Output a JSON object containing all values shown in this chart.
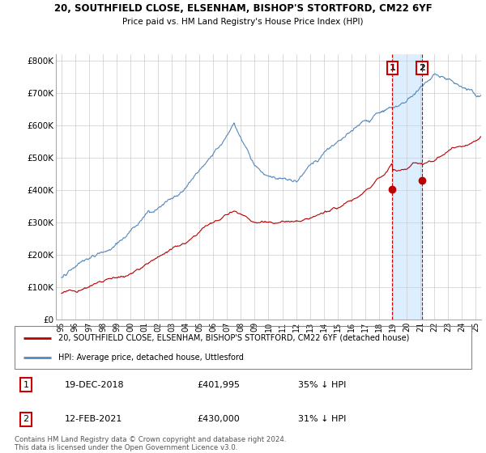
{
  "title_line1": "20, SOUTHFIELD CLOSE, ELSENHAM, BISHOP'S STORTFORD, CM22 6YF",
  "title_line2": "Price paid vs. HM Land Registry's House Price Index (HPI)",
  "ylabel_ticks": [
    "£0",
    "£100K",
    "£200K",
    "£300K",
    "£400K",
    "£500K",
    "£600K",
    "£700K",
    "£800K"
  ],
  "ytick_values": [
    0,
    100000,
    200000,
    300000,
    400000,
    500000,
    600000,
    700000,
    800000
  ],
  "ylim": [
    0,
    820000
  ],
  "legend_line1": "20, SOUTHFIELD CLOSE, ELSENHAM, BISHOP'S STORTFORD, CM22 6YF (detached house)",
  "legend_line2": "HPI: Average price, detached house, Uttlesford",
  "annotation1_date": "19-DEC-2018",
  "annotation1_price": "£401,995",
  "annotation1_hpi": "35% ↓ HPI",
  "annotation2_date": "12-FEB-2021",
  "annotation2_price": "£430,000",
  "annotation2_hpi": "31% ↓ HPI",
  "footer": "Contains HM Land Registry data © Crown copyright and database right 2024.\nThis data is licensed under the Open Government Licence v3.0.",
  "hpi_color": "#5588bb",
  "price_color": "#bb0000",
  "annotation_color": "#cc0000",
  "shade_color": "#ddeeff",
  "marker1_x": 2018.97,
  "marker1_y": 401995,
  "marker2_x": 2021.12,
  "marker2_y": 430000,
  "vline1_x": 2018.97,
  "vline2_x": 2021.12,
  "xlim_left": 1994.6,
  "xlim_right": 2025.4
}
